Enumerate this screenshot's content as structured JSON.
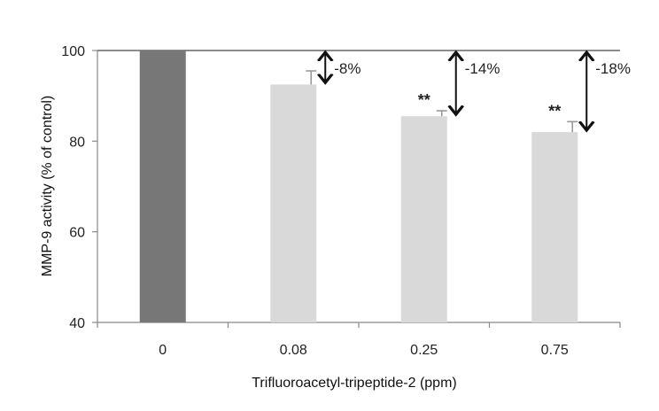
{
  "chart_data": {
    "type": "bar",
    "categories": [
      "0",
      "0.08",
      "0.25",
      "0.75"
    ],
    "values": [
      100,
      92.5,
      85.5,
      82
    ],
    "errors": [
      0,
      3,
      1.2,
      2.3
    ],
    "bar_colors": [
      "#777777",
      "#d9d9d9",
      "#d9d9d9",
      "#d9d9d9"
    ],
    "significance": [
      "",
      "",
      "**",
      "**"
    ],
    "reductions": [
      "",
      "-8%",
      "-14%",
      "-18%"
    ],
    "reference_line": 100,
    "xlabel": "Trifluoroacetyl-tripeptide-2 (ppm)",
    "ylabel": "MMP-9 activity (% of control)",
    "ylim": [
      40,
      100
    ],
    "yticks": [
      40,
      60,
      80,
      100
    ],
    "grid": false
  }
}
